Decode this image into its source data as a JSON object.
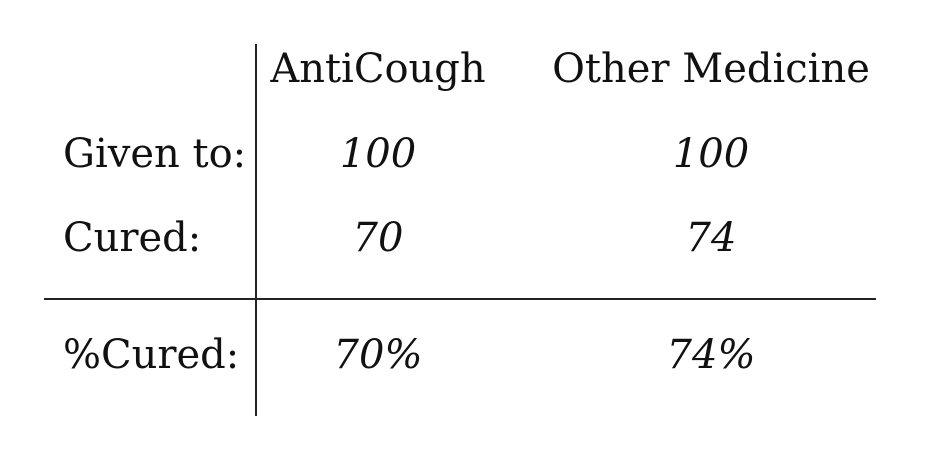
{
  "table": {
    "headers": {
      "col1": "AntiCough",
      "col2": "Other Medicine"
    },
    "rows": [
      {
        "label": "Given to:",
        "values": [
          "100",
          "100"
        ]
      },
      {
        "label": "Cured:",
        "values": [
          "70",
          "74"
        ]
      }
    ],
    "summary": {
      "label": "%Cured:",
      "values": [
        "70%",
        "74%"
      ]
    }
  }
}
